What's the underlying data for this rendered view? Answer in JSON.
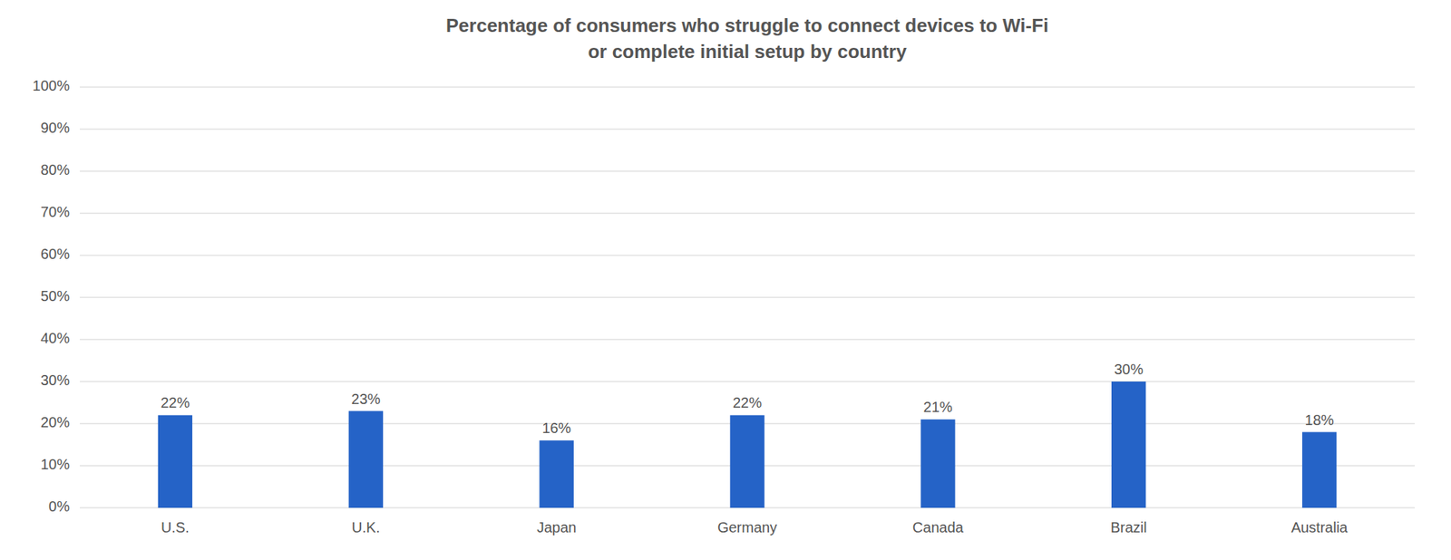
{
  "chart_data": {
    "type": "bar",
    "title": "Percentage of consumers who struggle to connect devices to Wi-Fi\nor complete initial setup by country",
    "categories": [
      "U.S.",
      "U.K.",
      "Japan",
      "Germany",
      "Canada",
      "Brazil",
      "Australia"
    ],
    "values": [
      22,
      23,
      16,
      22,
      21,
      30,
      18
    ],
    "value_labels": [
      "22%",
      "23%",
      "16%",
      "22%",
      "21%",
      "30%",
      "18%"
    ],
    "data_labels": true,
    "color": "#2563c7",
    "ylim": [
      0,
      100
    ],
    "yticks": [
      {
        "value": 0,
        "label": "0%"
      },
      {
        "value": 10,
        "label": "10%"
      },
      {
        "value": 20,
        "label": "20%"
      },
      {
        "value": 30,
        "label": "30%"
      },
      {
        "value": 40,
        "label": "40%"
      },
      {
        "value": 50,
        "label": "50%"
      },
      {
        "value": 60,
        "label": "60%"
      },
      {
        "value": 70,
        "label": "70%"
      },
      {
        "value": 80,
        "label": "80%"
      },
      {
        "value": 90,
        "label": "90%"
      },
      {
        "value": 100,
        "label": "100%"
      }
    ],
    "grid": true
  }
}
